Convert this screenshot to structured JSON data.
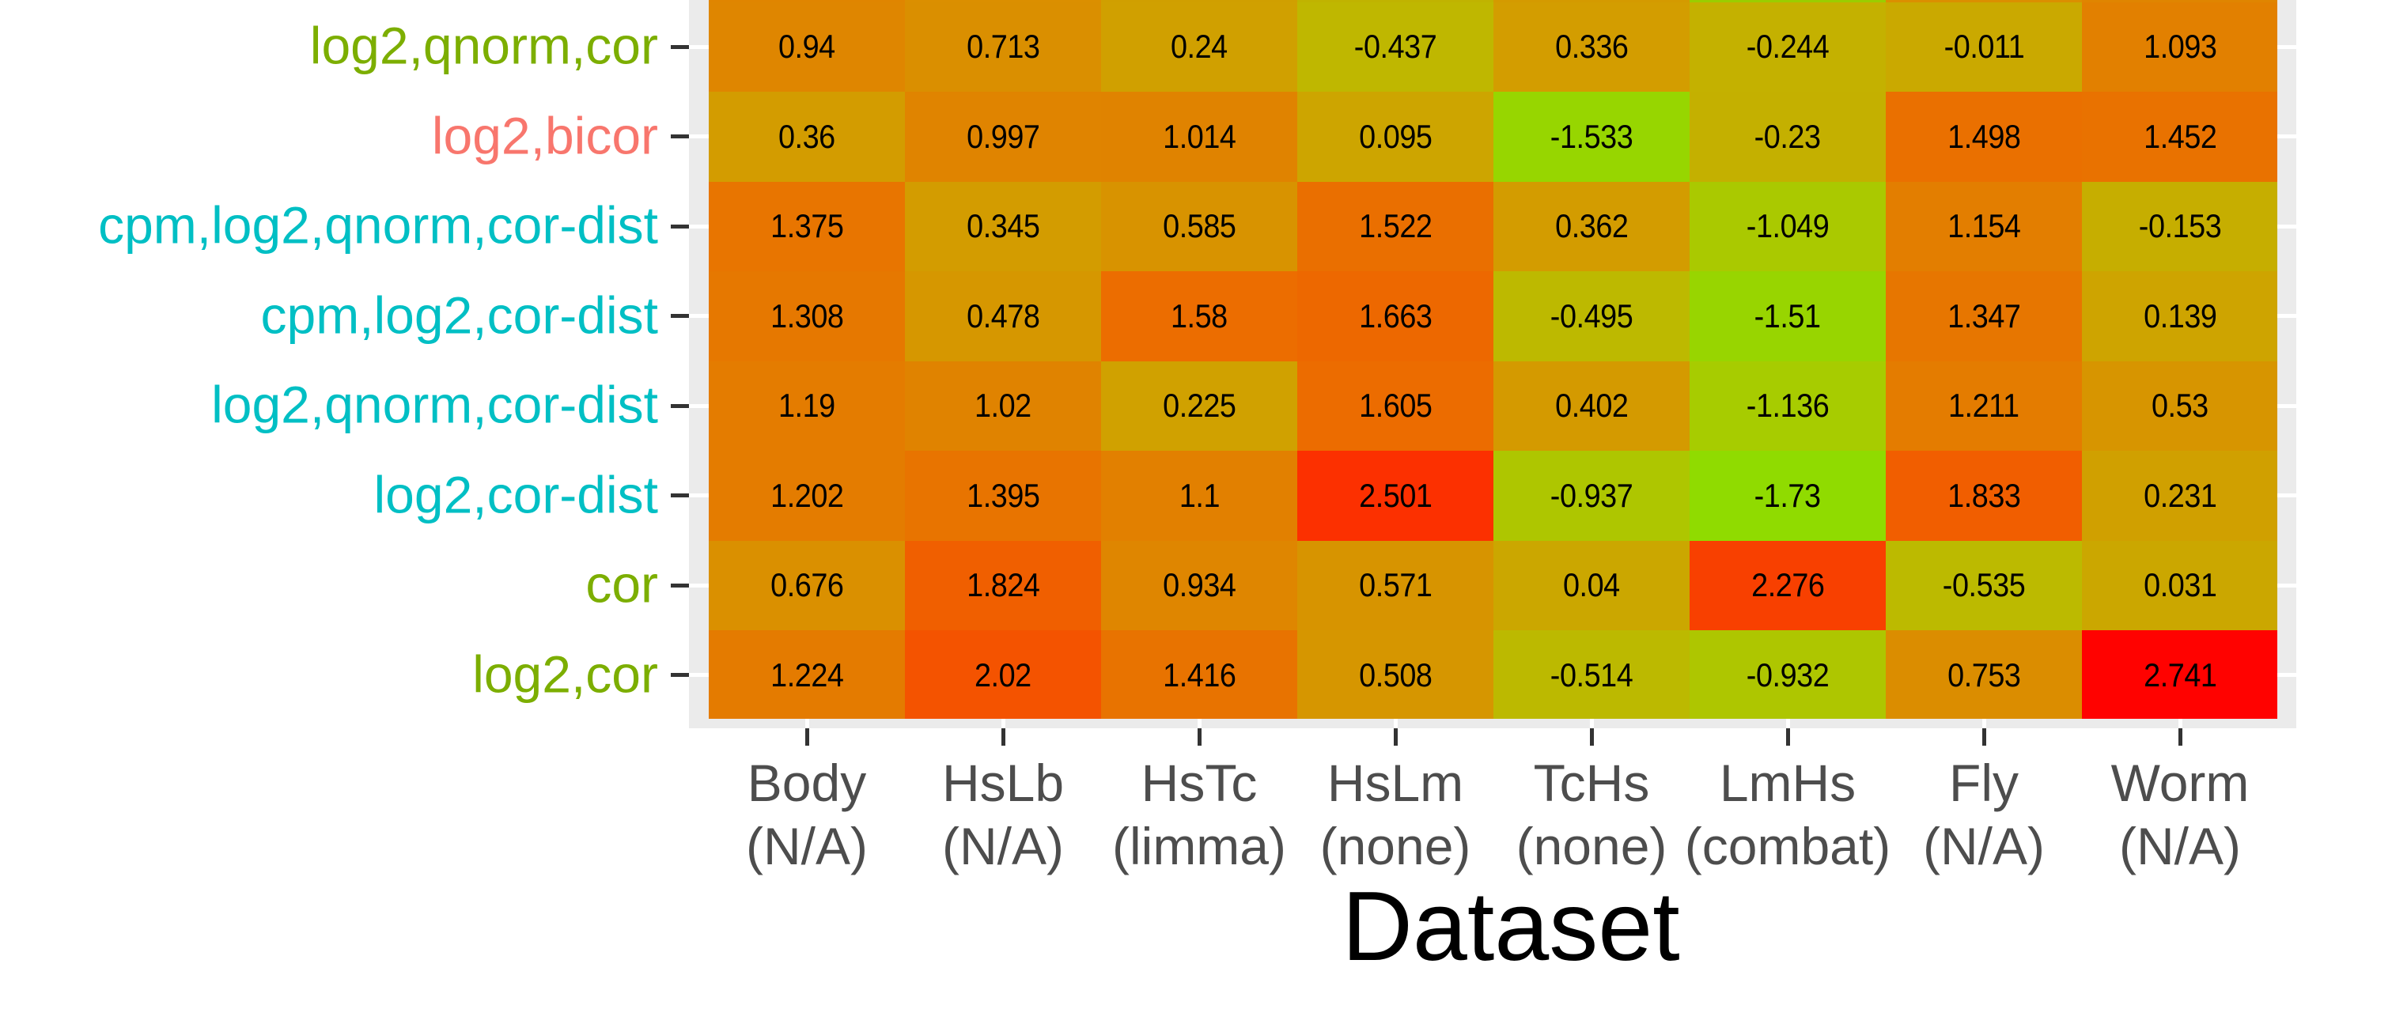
{
  "chart_data": {
    "type": "heatmap",
    "title": "",
    "xlabel": "Dataset",
    "ylabel": "",
    "x_categories": [
      {
        "line1": "Body",
        "line2": "(N/A)"
      },
      {
        "line1": "HsLb",
        "line2": "(N/A)"
      },
      {
        "line1": "HsTc",
        "line2": "(limma)"
      },
      {
        "line1": "HsLm",
        "line2": "(none)"
      },
      {
        "line1": "TcHs",
        "line2": "(none)"
      },
      {
        "line1": "LmHs",
        "line2": "(combat)"
      },
      {
        "line1": "Fly",
        "line2": "(N/A)"
      },
      {
        "line1": "Worm",
        "line2": "(N/A)"
      }
    ],
    "y_categories": [
      {
        "label": "log2,qnorm,cor",
        "color": "#7CAE00"
      },
      {
        "label": "log2,bicor",
        "color": "#F8766D"
      },
      {
        "label": "cpm,log2,qnorm,cor-dist",
        "color": "#00BFC4"
      },
      {
        "label": "cpm,log2,cor-dist",
        "color": "#00BFC4"
      },
      {
        "label": "log2,qnorm,cor-dist",
        "color": "#00BFC4"
      },
      {
        "label": "log2,cor-dist",
        "color": "#00BFC4"
      },
      {
        "label": "cor",
        "color": "#7CAE00"
      },
      {
        "label": "log2,cor",
        "color": "#7CAE00"
      }
    ],
    "values": [
      [
        0.94,
        0.713,
        0.24,
        -0.437,
        0.336,
        -0.244,
        -0.011,
        1.093
      ],
      [
        0.36,
        0.997,
        1.014,
        0.095,
        -1.533,
        -0.23,
        1.498,
        1.452
      ],
      [
        1.375,
        0.345,
        0.585,
        1.522,
        0.362,
        -1.049,
        1.154,
        -0.153
      ],
      [
        1.308,
        0.478,
        1.58,
        1.663,
        -0.495,
        -1.51,
        1.347,
        0.139
      ],
      [
        1.19,
        1.02,
        0.225,
        1.605,
        0.402,
        -1.136,
        1.211,
        0.53
      ],
      [
        1.202,
        1.395,
        1.1,
        2.501,
        -0.937,
        -1.73,
        1.833,
        0.231
      ],
      [
        0.676,
        1.824,
        0.934,
        0.571,
        0.04,
        2.276,
        -0.535,
        0.031
      ],
      [
        1.224,
        2.02,
        1.416,
        0.508,
        -0.514,
        -0.932,
        0.753,
        2.741
      ]
    ],
    "labels": [
      [
        "0.94",
        "0.713",
        "0.24",
        "-0.437",
        "0.336",
        "-0.244",
        "-0.011",
        "1.093"
      ],
      [
        "0.36",
        "0.997",
        "1.014",
        "0.095",
        "-1.533",
        "-0.23",
        "1.498",
        "1.452"
      ],
      [
        "1.375",
        "0.345",
        "0.585",
        "1.522",
        "0.362",
        "-1.049",
        "1.154",
        "-0.153"
      ],
      [
        "1.308",
        "0.478",
        "1.58",
        "1.663",
        "-0.495",
        "-1.51",
        "1.347",
        "0.139"
      ],
      [
        "1.19",
        "1.02",
        "0.225",
        "1.605",
        "0.402",
        "-1.136",
        "1.211",
        "0.53"
      ],
      [
        "1.202",
        "1.395",
        "1.1",
        "2.501",
        "-0.937",
        "-1.73",
        "1.833",
        "0.231"
      ],
      [
        "0.676",
        "1.824",
        "0.934",
        "0.571",
        "0.04",
        "2.276",
        "-0.535",
        "0.031"
      ],
      [
        "1.224",
        "2.02",
        "1.416",
        "0.508",
        "-0.514",
        "-0.932",
        "0.753",
        "2.741"
      ]
    ],
    "color_scale": {
      "low": "#7FFF00",
      "mid": "#D0A000",
      "high": "#FF0000",
      "range": [
        -2.0,
        2.75
      ]
    },
    "partial_row_above": {
      "visible": true,
      "note_colors": [
        "#E08500",
        "#DB8F00",
        "#D09F00",
        "#C0B300",
        "#D49A00",
        "#9ACD00",
        "#DB8F00",
        "#E08500"
      ]
    },
    "grid": true,
    "legend": "none",
    "panel_background": "#EBEBEB"
  }
}
